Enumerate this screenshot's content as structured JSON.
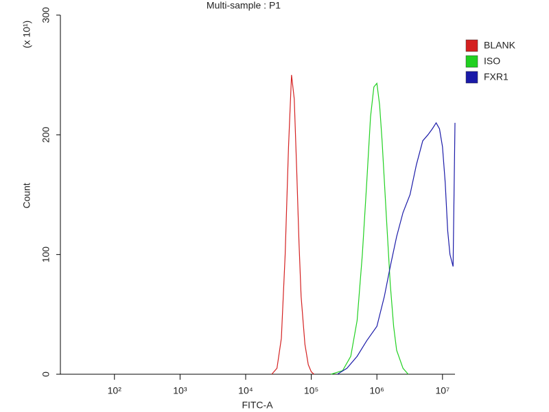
{
  "chart_data": {
    "type": "line",
    "title": "Multi-sample : P1",
    "x_label": "FITC-A",
    "y_label": "Count",
    "y_unit_label": "(x 10¹)",
    "x_log_scale": true,
    "legend": "right",
    "xlim": [
      15,
      15500000
    ],
    "ylim": [
      0,
      300
    ],
    "xticks": [
      {
        "value": 100,
        "label": "10²"
      },
      {
        "value": 1000,
        "label": "10³"
      },
      {
        "value": 10000,
        "label": "10⁴"
      },
      {
        "value": 100000,
        "label": "10⁵"
      },
      {
        "value": 1000000,
        "label": "10⁶"
      },
      {
        "value": 10000000,
        "label": "10⁷"
      }
    ],
    "yticks": [
      0,
      100,
      200,
      300
    ],
    "series": [
      {
        "name": "BLANK",
        "color": "#d42020",
        "x": [
          25000,
          30000,
          35000,
          40000,
          45000,
          50000,
          55000,
          60000,
          65000,
          70000,
          80000,
          90000,
          100000,
          110000
        ],
        "values": [
          0,
          5,
          30,
          100,
          190,
          250,
          230,
          170,
          110,
          65,
          25,
          8,
          2,
          0
        ]
      },
      {
        "name": "ISO",
        "color": "#20d020",
        "x": [
          200000,
          300000,
          400000,
          500000,
          600000,
          700000,
          800000,
          900000,
          1000000,
          1100000,
          1200000,
          1400000,
          1600000,
          1800000,
          2000000,
          2500000,
          3000000
        ],
        "values": [
          0,
          3,
          15,
          45,
          100,
          160,
          215,
          240,
          243,
          225,
          195,
          130,
          75,
          40,
          20,
          5,
          0
        ]
      },
      {
        "name": "FXR1",
        "color": "#1a1aa8",
        "x": [
          250000,
          350000,
          500000,
          700000,
          1000000,
          1300000,
          1600000,
          2000000,
          2500000,
          3200000,
          4000000,
          5000000,
          6000000,
          7000000,
          8000000,
          9000000,
          10000000,
          11000000,
          12000000,
          13000000,
          14500000,
          15500000
        ],
        "values": [
          0,
          5,
          15,
          28,
          40,
          65,
          90,
          115,
          135,
          150,
          175,
          195,
          200,
          205,
          210,
          205,
          190,
          160,
          120,
          100,
          90,
          210
        ]
      }
    ]
  }
}
